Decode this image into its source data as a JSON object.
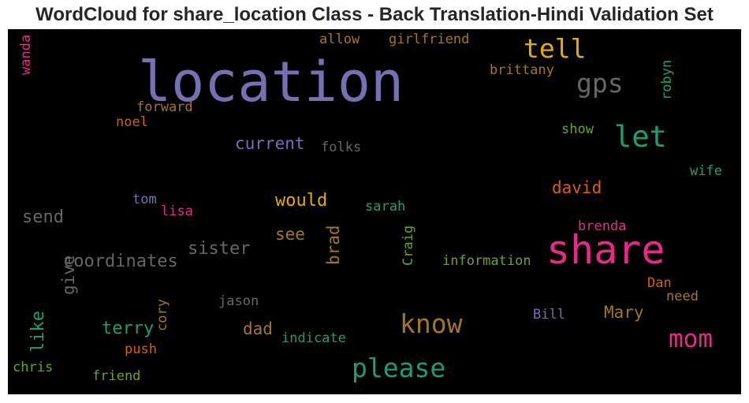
{
  "title": "WordCloud for share_location Class - Back Translation-Hindi Validation Set",
  "colors": {
    "purple": "#7570b3",
    "pink": "#e7298a",
    "green": "#1b9e77",
    "orange": "#d95f02",
    "gold": "#e6ab02",
    "olive": "#a6761d",
    "lime": "#66a61e",
    "gray": "#666666"
  },
  "words": [
    "location",
    "share",
    "tell",
    "gps",
    "let",
    "please",
    "know",
    "mom",
    "current",
    "folks",
    "would",
    "send",
    "sister",
    "coordinates",
    "see",
    "brad",
    "david",
    "sarah",
    "tom",
    "lisa",
    "give",
    "like",
    "terry",
    "cory",
    "dad",
    "jason",
    "indicate",
    "push",
    "chris",
    "friend",
    "Craig",
    "information",
    "brenda",
    "Dan",
    "need",
    "Mary",
    "Bill",
    "wife",
    "show",
    "robyn",
    "brittany",
    "allow",
    "girlfriend",
    "forward",
    "noel",
    "wanda"
  ]
}
